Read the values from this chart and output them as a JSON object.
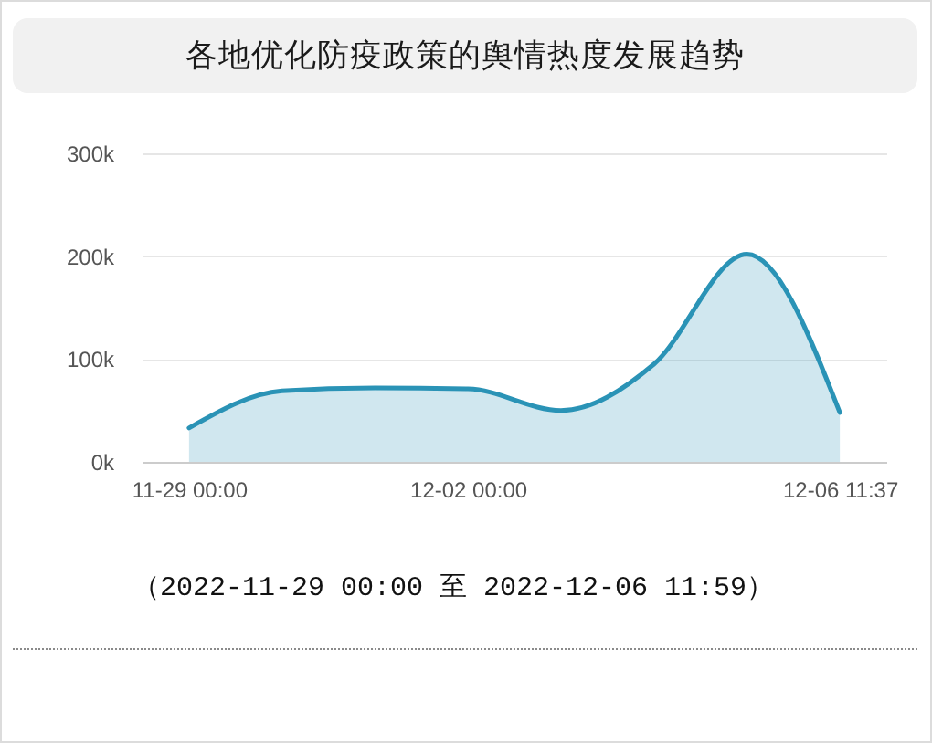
{
  "chart_data": {
    "type": "area",
    "title": "各地优化防疫政策的舆情热度发展趋势",
    "categories": [
      "11-29 00:00",
      null,
      null,
      "12-02 00:00",
      null,
      null,
      null,
      "12-06 11:37"
    ],
    "series": [
      {
        "color": "#2a93b6",
        "values": [
          33000,
          69000,
          72000,
          71000,
          50000,
          95000,
          202000,
          48000
        ]
      }
    ],
    "ylim": [
      0,
      300000
    ],
    "yticks": [
      {
        "value": 0,
        "label": "0k"
      },
      {
        "value": 100000,
        "label": "100k"
      },
      {
        "value": 200000,
        "label": "200k"
      },
      {
        "value": 300000,
        "label": "300k"
      }
    ],
    "grid": "y",
    "annotations": [
      "（2022-11-29 00:00 至 2022-12-06 11:59）"
    ]
  }
}
